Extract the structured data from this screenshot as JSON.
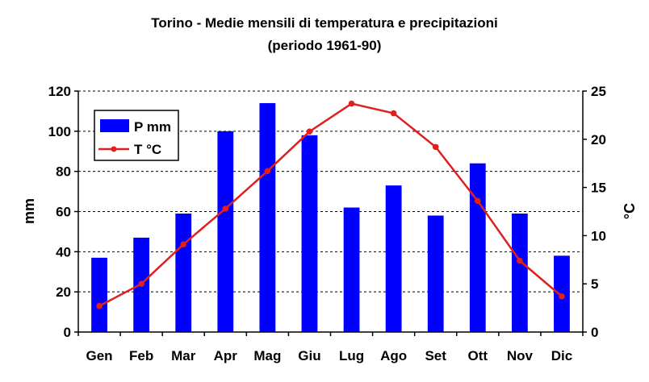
{
  "chart_data": {
    "type": "bar+line",
    "title": "Torino - Medie mensili di temperatura e precipitazioni",
    "subtitle": "(periodo 1961-90)",
    "categories": [
      "Gen",
      "Feb",
      "Mar",
      "Apr",
      "Mag",
      "Giu",
      "Lug",
      "Ago",
      "Set",
      "Ott",
      "Nov",
      "Dic"
    ],
    "series": [
      {
        "name": "P mm",
        "type": "bar",
        "axis": "left",
        "color": "#0000ff",
        "values": [
          37,
          47,
          59,
          100,
          114,
          98,
          62,
          73,
          58,
          84,
          59,
          38
        ]
      },
      {
        "name": "T °C",
        "type": "line",
        "axis": "right",
        "color": "#e02020",
        "values": [
          2.7,
          5.0,
          9.1,
          12.8,
          16.7,
          20.8,
          23.7,
          22.7,
          19.2,
          13.6,
          7.4,
          3.7
        ]
      }
    ],
    "ylabel_left": "mm",
    "ylabel_right": "°C",
    "ylim_left": [
      0,
      120
    ],
    "yticks_left": [
      0,
      20,
      40,
      60,
      80,
      100,
      120
    ],
    "ylim_right": [
      0,
      25
    ],
    "yticks_right": [
      0,
      5,
      10,
      15,
      20,
      25
    ],
    "grid": "horizontal dashed",
    "legend_placement": "top-left"
  }
}
